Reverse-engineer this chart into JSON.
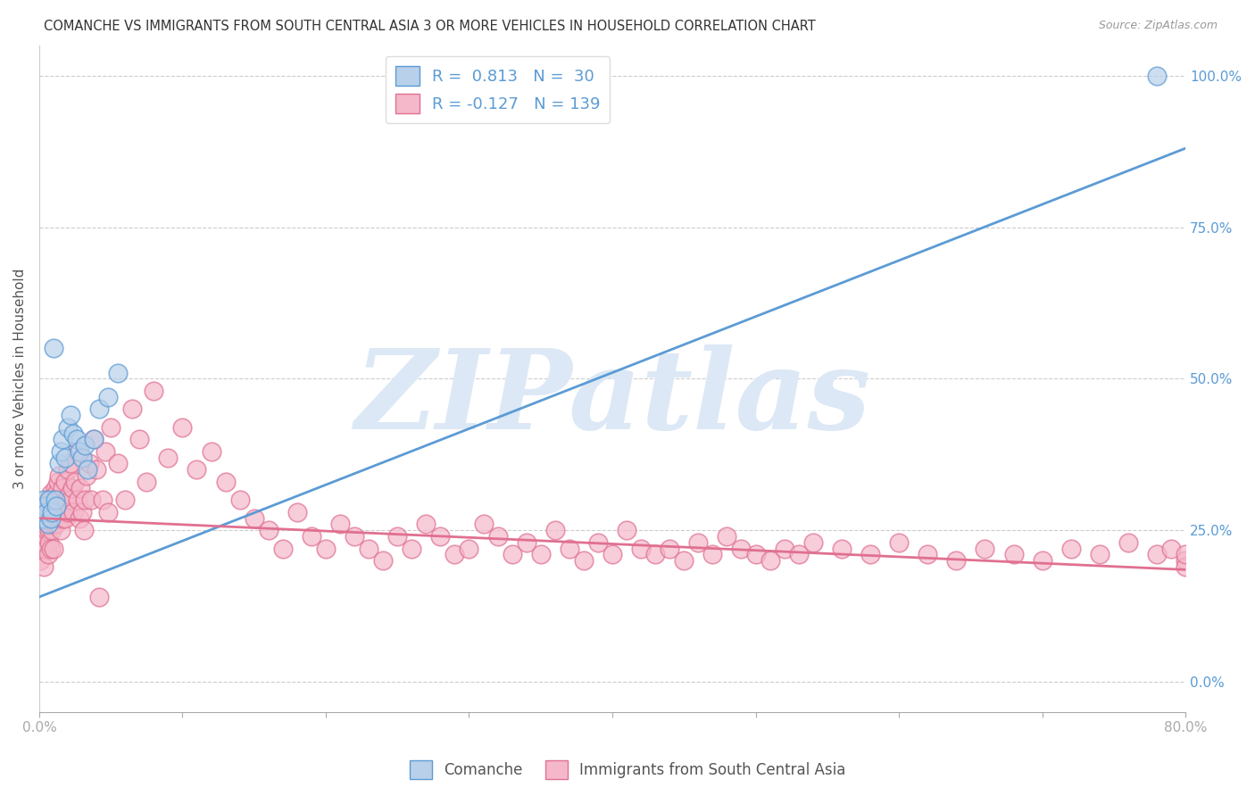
{
  "title": "COMANCHE VS IMMIGRANTS FROM SOUTH CENTRAL ASIA 3 OR MORE VEHICLES IN HOUSEHOLD CORRELATION CHART",
  "source": "Source: ZipAtlas.com",
  "ylabel": "3 or more Vehicles in Household",
  "xlim": [
    0.0,
    0.8
  ],
  "ylim": [
    -0.05,
    1.05
  ],
  "xticks": [
    0.0,
    0.1,
    0.2,
    0.3,
    0.4,
    0.5,
    0.6,
    0.7,
    0.8
  ],
  "xticklabels": [
    "0.0%",
    "",
    "",
    "",
    "",
    "",
    "",
    "",
    "80.0%"
  ],
  "yticks_right": [
    0.0,
    0.25,
    0.5,
    0.75,
    1.0
  ],
  "yticklabels_right": [
    "0.0%",
    "25.0%",
    "50.0%",
    "75.0%",
    "100.0%"
  ],
  "blue_R": 0.813,
  "blue_N": 30,
  "pink_R": -0.127,
  "pink_N": 139,
  "blue_color": "#b8d0ea",
  "blue_edge_color": "#5b9bd5",
  "pink_color": "#f5b8cb",
  "pink_edge_color": "#e07090",
  "blue_line_color": "#5b9bd5",
  "pink_line_color": "#e07090",
  "watermark": "ZIPatlas",
  "watermark_color": "#dce8f5",
  "legend_label_blue": "Comanche",
  "legend_label_pink": "Immigrants from South Central Asia",
  "blue_scatter_x": [
    0.001,
    0.002,
    0.003,
    0.003,
    0.004,
    0.005,
    0.006,
    0.007,
    0.008,
    0.009,
    0.01,
    0.011,
    0.012,
    0.014,
    0.015,
    0.016,
    0.018,
    0.02,
    0.022,
    0.024,
    0.026,
    0.028,
    0.03,
    0.032,
    0.034,
    0.038,
    0.042,
    0.048,
    0.055,
    0.78
  ],
  "blue_scatter_y": [
    0.28,
    0.27,
    0.3,
    0.27,
    0.29,
    0.28,
    0.26,
    0.3,
    0.27,
    0.28,
    0.55,
    0.3,
    0.29,
    0.36,
    0.38,
    0.4,
    0.37,
    0.42,
    0.44,
    0.41,
    0.4,
    0.38,
    0.37,
    0.39,
    0.35,
    0.4,
    0.45,
    0.47,
    0.51,
    1.0
  ],
  "pink_scatter_x": [
    0.001,
    0.001,
    0.002,
    0.002,
    0.003,
    0.003,
    0.003,
    0.004,
    0.004,
    0.005,
    0.005,
    0.005,
    0.006,
    0.006,
    0.006,
    0.007,
    0.007,
    0.007,
    0.008,
    0.008,
    0.008,
    0.009,
    0.009,
    0.01,
    0.01,
    0.01,
    0.011,
    0.011,
    0.012,
    0.012,
    0.013,
    0.013,
    0.014,
    0.014,
    0.015,
    0.015,
    0.016,
    0.016,
    0.017,
    0.018,
    0.018,
    0.019,
    0.02,
    0.02,
    0.021,
    0.022,
    0.022,
    0.023,
    0.024,
    0.025,
    0.026,
    0.027,
    0.028,
    0.029,
    0.03,
    0.031,
    0.032,
    0.033,
    0.035,
    0.036,
    0.038,
    0.04,
    0.042,
    0.044,
    0.046,
    0.048,
    0.05,
    0.055,
    0.06,
    0.065,
    0.07,
    0.075,
    0.08,
    0.09,
    0.1,
    0.11,
    0.12,
    0.13,
    0.14,
    0.15,
    0.16,
    0.17,
    0.18,
    0.19,
    0.2,
    0.21,
    0.22,
    0.23,
    0.24,
    0.25,
    0.26,
    0.27,
    0.28,
    0.29,
    0.3,
    0.31,
    0.32,
    0.33,
    0.34,
    0.35,
    0.36,
    0.37,
    0.38,
    0.39,
    0.4,
    0.41,
    0.42,
    0.43,
    0.44,
    0.45,
    0.46,
    0.47,
    0.48,
    0.49,
    0.5,
    0.51,
    0.52,
    0.53,
    0.54,
    0.56,
    0.58,
    0.6,
    0.62,
    0.64,
    0.66,
    0.68,
    0.7,
    0.72,
    0.74,
    0.76,
    0.78,
    0.79,
    0.8,
    0.8,
    0.8
  ],
  "pink_scatter_y": [
    0.25,
    0.2,
    0.27,
    0.22,
    0.28,
    0.24,
    0.19,
    0.26,
    0.23,
    0.28,
    0.25,
    0.22,
    0.3,
    0.26,
    0.21,
    0.29,
    0.25,
    0.23,
    0.31,
    0.27,
    0.22,
    0.3,
    0.25,
    0.29,
    0.26,
    0.22,
    0.32,
    0.27,
    0.31,
    0.26,
    0.33,
    0.28,
    0.34,
    0.27,
    0.3,
    0.25,
    0.32,
    0.27,
    0.29,
    0.33,
    0.27,
    0.3,
    0.35,
    0.28,
    0.31,
    0.36,
    0.3,
    0.32,
    0.28,
    0.33,
    0.38,
    0.3,
    0.27,
    0.32,
    0.28,
    0.25,
    0.3,
    0.34,
    0.36,
    0.3,
    0.4,
    0.35,
    0.14,
    0.3,
    0.38,
    0.28,
    0.42,
    0.36,
    0.3,
    0.45,
    0.4,
    0.33,
    0.48,
    0.37,
    0.42,
    0.35,
    0.38,
    0.33,
    0.3,
    0.27,
    0.25,
    0.22,
    0.28,
    0.24,
    0.22,
    0.26,
    0.24,
    0.22,
    0.2,
    0.24,
    0.22,
    0.26,
    0.24,
    0.21,
    0.22,
    0.26,
    0.24,
    0.21,
    0.23,
    0.21,
    0.25,
    0.22,
    0.2,
    0.23,
    0.21,
    0.25,
    0.22,
    0.21,
    0.22,
    0.2,
    0.23,
    0.21,
    0.24,
    0.22,
    0.21,
    0.2,
    0.22,
    0.21,
    0.23,
    0.22,
    0.21,
    0.23,
    0.21,
    0.2,
    0.22,
    0.21,
    0.2,
    0.22,
    0.21,
    0.23,
    0.21,
    0.22,
    0.2,
    0.19,
    0.21
  ],
  "blue_line_x": [
    0.0,
    0.8
  ],
  "blue_line_y": [
    0.14,
    0.88
  ],
  "pink_line_x": [
    0.0,
    0.8
  ],
  "pink_line_y": [
    0.27,
    0.185
  ],
  "figsize": [
    14.06,
    8.92
  ],
  "dpi": 100
}
